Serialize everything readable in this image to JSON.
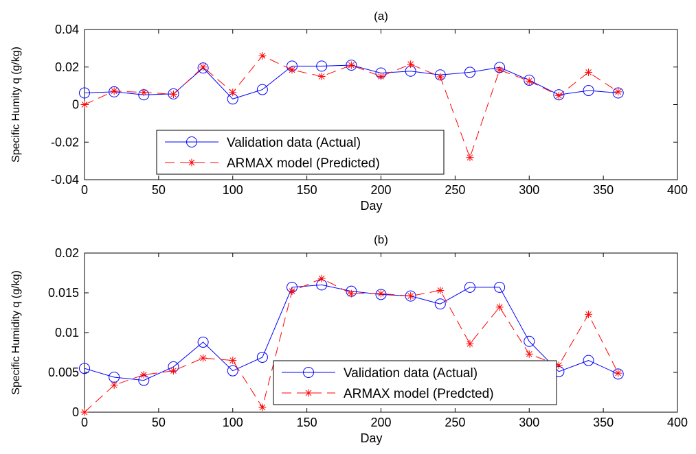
{
  "chart_data": [
    {
      "type": "line",
      "title": "(a)",
      "xlabel": "Day",
      "ylabel": "Specific Humity q (g/kg)",
      "xlim": [
        0,
        400
      ],
      "ylim": [
        -0.04,
        0.04
      ],
      "xticks": [
        0,
        50,
        100,
        150,
        200,
        250,
        300,
        350,
        400
      ],
      "xtick_labels": [
        "0",
        "50",
        "100",
        "150",
        "200",
        "250",
        "300",
        "350",
        "400"
      ],
      "yticks": [
        -0.04,
        -0.02,
        0,
        0.02,
        0.04
      ],
      "ytick_labels": [
        "-0.04",
        "-0.02",
        "0",
        "0.02",
        "0.04"
      ],
      "grid": false,
      "legend_position": "bottom-left",
      "x": [
        0,
        20,
        40,
        60,
        80,
        100,
        120,
        140,
        160,
        180,
        200,
        220,
        240,
        260,
        280,
        300,
        320,
        340,
        360
      ],
      "series": [
        {
          "name": "Validation data (Actual)",
          "color": "#0000ff",
          "marker": "circle",
          "line": "solid",
          "values": [
            0.0062,
            0.0068,
            0.0052,
            0.0057,
            0.0195,
            0.003,
            0.008,
            0.0205,
            0.0205,
            0.021,
            0.0168,
            0.0178,
            0.0158,
            0.0172,
            0.0198,
            0.013,
            0.0052,
            0.0075,
            0.0062
          ]
        },
        {
          "name": "ARMAX model (Predicted)",
          "color": "#ff0000",
          "marker": "star",
          "line": "dashed",
          "values": [
            0.0,
            0.0072,
            0.0065,
            0.0055,
            0.02,
            0.0065,
            0.026,
            0.0185,
            0.015,
            0.021,
            0.015,
            0.0215,
            0.0148,
            -0.0282,
            0.0185,
            0.0125,
            0.0048,
            0.0172,
            0.0068
          ]
        }
      ]
    },
    {
      "type": "line",
      "title": "(b)",
      "xlabel": "Day",
      "ylabel": "Specific Humidity q (g/kg)",
      "xlim": [
        0,
        400
      ],
      "ylim": [
        0,
        0.02
      ],
      "xticks": [
        0,
        50,
        100,
        150,
        200,
        250,
        300,
        350,
        400
      ],
      "xtick_labels": [
        "0",
        "50",
        "100",
        "150",
        "200",
        "250",
        "300",
        "350",
        "400"
      ],
      "yticks": [
        0,
        0.005,
        0.01,
        0.015,
        0.02
      ],
      "ytick_labels": [
        "0",
        "0.005",
        "0.01",
        "0.015",
        "0.02"
      ],
      "grid": false,
      "legend_position": "bottom-center",
      "x": [
        0,
        20,
        40,
        60,
        80,
        100,
        120,
        140,
        160,
        180,
        200,
        220,
        240,
        260,
        280,
        300,
        320,
        340,
        360
      ],
      "series": [
        {
          "name": "Validation data (Actual)",
          "color": "#0000ff",
          "marker": "circle",
          "line": "solid",
          "values": [
            0.0055,
            0.0044,
            0.004,
            0.0057,
            0.0088,
            0.0052,
            0.0069,
            0.0157,
            0.016,
            0.0152,
            0.0148,
            0.0146,
            0.0136,
            0.0157,
            0.0157,
            0.0089,
            0.0051,
            0.0065,
            0.0048
          ]
        },
        {
          "name": "ARMAX model (Predcted)",
          "color": "#ff0000",
          "marker": "star",
          "line": "dashed",
          "values": [
            0.0,
            0.0034,
            0.0047,
            0.0052,
            0.0068,
            0.0065,
            0.0006,
            0.0152,
            0.0168,
            0.0149,
            0.0149,
            0.0146,
            0.0153,
            0.0086,
            0.0132,
            0.0073,
            0.0059,
            0.0123,
            0.0049
          ]
        }
      ]
    }
  ]
}
